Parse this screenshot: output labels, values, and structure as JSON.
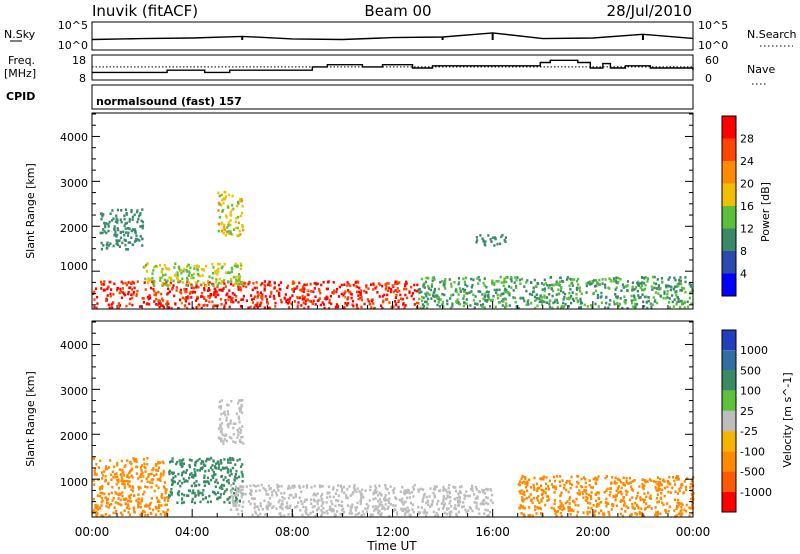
{
  "header": {
    "station": "Inuvik (fitACF)",
    "beam": "Beam 00",
    "date": "28/Jul/2010"
  },
  "sky_panel": {
    "left_label": "N.Sky",
    "left_ticks": [
      "10^5",
      "10^0"
    ],
    "right_label": "N.Search",
    "right_ticks": [
      "10^5",
      "10^0"
    ]
  },
  "freq_panel": {
    "left_label_1": "Freq.",
    "left_label_2": "[MHz]",
    "left_ticks": [
      "18",
      "8"
    ],
    "right_label": "Nave",
    "right_ticks": [
      "60",
      "0"
    ],
    "cpid_label": "CPID",
    "cpid_text": "normalsound (fast) 157"
  },
  "power_panel": {
    "ylabel": "Slant Range [km]",
    "yticks": [
      "4000",
      "3000",
      "2000",
      "1000"
    ],
    "colorbar_label": "Power [dB]",
    "colorbar_ticks": [
      "28",
      "24",
      "20",
      "16",
      "12",
      "8",
      "4"
    ]
  },
  "velocity_panel": {
    "ylabel": "Slant Range [km]",
    "yticks": [
      "4000",
      "3000",
      "2000",
      "1000"
    ],
    "colorbar_label": "Velocity [m s^-1]",
    "colorbar_ticks": [
      "1000",
      "500",
      "100",
      "25",
      "-25",
      "-100",
      "-500",
      "-1000"
    ]
  },
  "x_axis": {
    "label": "Time UT",
    "ticks": [
      "00:00",
      "04:00",
      "08:00",
      "12:00",
      "16:00",
      "20:00",
      "00:00"
    ]
  },
  "colors": {
    "power_scale": [
      "#0000ff",
      "#2a4ab0",
      "#3a8a6a",
      "#5abf3a",
      "#f0c000",
      "#ff8c00",
      "#ff4500",
      "#ff0000"
    ],
    "velocity_scale": [
      "#1f3fbf",
      "#2e6ea0",
      "#3b8b62",
      "#5dc23a",
      "#bdbdbd",
      "#f4b400",
      "#ff8a00",
      "#ff5a00",
      "#ff0000"
    ]
  },
  "chart_data": [
    {
      "type": "line",
      "title": "",
      "xlabel": "",
      "ylabel": "N.Sky",
      "x_range": [
        "00:00",
        "24:00"
      ],
      "series": [
        {
          "x": [
            0,
            2,
            4,
            6,
            8,
            10,
            12,
            14,
            16,
            18,
            20,
            22,
            24
          ],
          "values": [
            60,
            90,
            120,
            260,
            80,
            60,
            150,
            200,
            1400,
            90,
            120,
            700,
            100
          ]
        }
      ]
    },
    {
      "type": "line",
      "title": "",
      "xlabel": "",
      "ylabel": "Freq. [MHz]",
      "ylim": [
        8,
        18
      ],
      "series": [
        {
          "x": [
            0,
            3,
            4.5,
            5.5,
            8.8,
            9.4,
            10.8,
            11.6,
            12.8,
            13.6,
            17.9,
            18.3,
            19.4,
            19.9,
            20.4,
            20.7,
            21.3,
            22.3,
            24
          ],
          "values": [
            11.0,
            12.0,
            11.0,
            12.0,
            13.5,
            14.5,
            13.5,
            14.5,
            13.0,
            14.0,
            15.5,
            16.5,
            15.5,
            13.0,
            15.0,
            13.0,
            14.0,
            13.0,
            12.0
          ]
        },
        {
          "x": [
            0,
            24
          ],
          "values": [
            13.5,
            13.5
          ]
        }
      ]
    },
    {
      "type": "heatmap",
      "title": "",
      "xlabel": "",
      "ylabel": "Slant Range [km]",
      "ylim": [
        180,
        4500
      ],
      "x_range": [
        "00:00",
        "24:00"
      ],
      "zlabel": "Power [dB]",
      "zlim": [
        0,
        32
      ],
      "grid": false,
      "features": [
        {
          "name": "",
          "t_start": 0,
          "t_end": 13,
          "r_min": 200,
          "r_max": 800,
          "value": 29
        },
        {
          "name": "",
          "t_start": 2,
          "t_end": 6,
          "r_min": 700,
          "r_max": 1200,
          "value": 16
        },
        {
          "name": "",
          "t_start": 13,
          "t_end": 24,
          "r_min": 200,
          "r_max": 900,
          "value": 12
        },
        {
          "name": "",
          "t_start": 0.3,
          "t_end": 2,
          "r_min": 1500,
          "r_max": 2400,
          "value": 10
        },
        {
          "name": "",
          "t_start": 5,
          "t_end": 6,
          "r_min": 1800,
          "r_max": 2800,
          "value": 18
        },
        {
          "name": "",
          "t_start": 15.3,
          "t_end": 16.5,
          "r_min": 1600,
          "r_max": 1850,
          "value": 10
        }
      ]
    },
    {
      "type": "heatmap",
      "title": "",
      "xlabel": "Time UT",
      "ylabel": "Slant Range [km]",
      "ylim": [
        180,
        4500
      ],
      "x_range": [
        "00:00",
        "24:00"
      ],
      "zlabel": "Velocity [m s^-1]",
      "zlim": [
        -1000,
        1000
      ],
      "grid": false,
      "features": [
        {
          "name": "",
          "t_start": 3,
          "t_end": 6,
          "r_min": 500,
          "r_max": 1500,
          "value": 250
        },
        {
          "name": "",
          "t_start": 5.5,
          "t_end": 16,
          "r_min": 200,
          "r_max": 900,
          "value": 0
        },
        {
          "name": "",
          "t_start": 0,
          "t_end": 3,
          "r_min": 200,
          "r_max": 1500,
          "value": -150
        },
        {
          "name": "",
          "t_start": 17,
          "t_end": 24,
          "r_min": 200,
          "r_max": 1100,
          "value": -200
        },
        {
          "name": "",
          "t_start": 5,
          "t_end": 6,
          "r_min": 1800,
          "r_max": 2800,
          "value": 0
        }
      ]
    }
  ]
}
